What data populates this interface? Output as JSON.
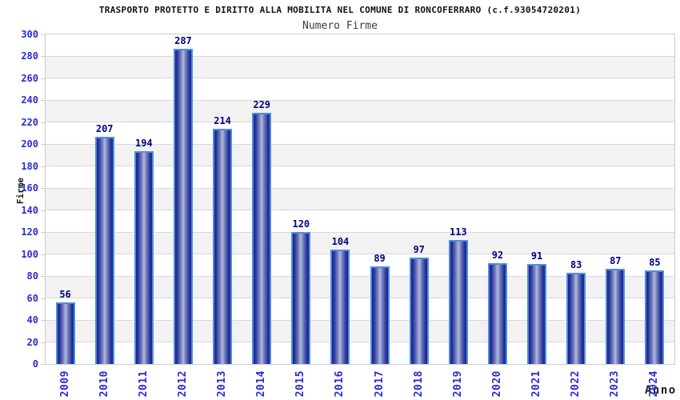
{
  "header": {
    "title": "TRASPORTO PROTETTO E DIRITTO ALLA MOBILITA NEL COMUNE DI RONCOFERRARO (c.f.93054720201)",
    "subtitle": "Numero Firme"
  },
  "chart_data": {
    "type": "bar",
    "title": "TRASPORTO PROTETTO E DIRITTO ALLA MOBILITA NEL COMUNE DI RONCOFERRARO (c.f.93054720201)",
    "subtitle": "Numero Firme",
    "categories": [
      "2009",
      "2010",
      "2011",
      "2012",
      "2013",
      "2014",
      "2015",
      "2016",
      "2017",
      "2018",
      "2019",
      "2020",
      "2021",
      "2022",
      "2023",
      "2024"
    ],
    "values": [
      56,
      207,
      194,
      287,
      214,
      229,
      120,
      104,
      89,
      97,
      113,
      92,
      91,
      83,
      87,
      85
    ],
    "xlabel": "Anno",
    "ylabel": "Firme",
    "ylim": [
      0,
      300
    ],
    "ytick_step": 20,
    "grid": true,
    "legend_position": "none",
    "value_labels_shown": true,
    "colors": {
      "bar_edge_dark": "#1b2090",
      "bar_mid": "#7d88c2",
      "bar_center_light": "#b2badd",
      "bar_outline": "#4a8fe0",
      "axis_tick_label": "#2b2bd1",
      "value_label": "#000082",
      "band_gray": "#f2f2f2",
      "band_white": "#ffffff",
      "gridline": "#d9d9d9",
      "plot_border": "#cccccc",
      "title_color": "#111111",
      "subtitle_color": "#3d3d3d"
    }
  }
}
